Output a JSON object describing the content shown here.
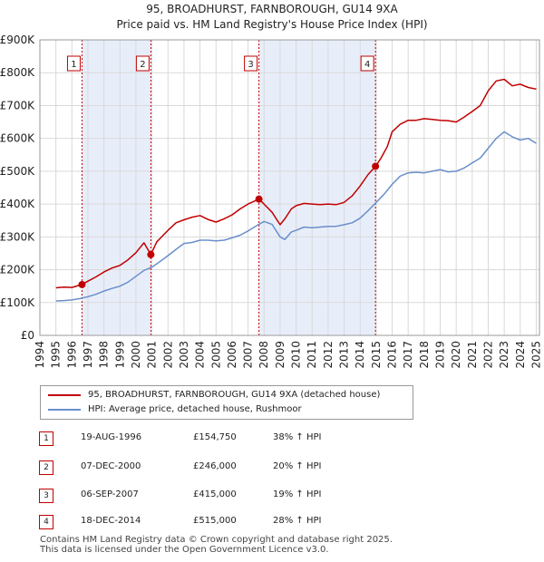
{
  "title_line1": "95, BROADHURST, FARNBOROUGH, GU14 9XA",
  "title_line2": "Price paid vs. HM Land Registry's House Price Index (HPI)",
  "chart_data": {
    "type": "line",
    "xlim": [
      1994.0,
      2025.2
    ],
    "ylim": [
      0,
      900000
    ],
    "y_ticks": [
      {
        "value": 0,
        "label": "£0"
      },
      {
        "value": 100000,
        "label": "£100K"
      },
      {
        "value": 200000,
        "label": "£200K"
      },
      {
        "value": 300000,
        "label": "£300K"
      },
      {
        "value": 400000,
        "label": "£400K"
      },
      {
        "value": 500000,
        "label": "£500K"
      },
      {
        "value": 600000,
        "label": "£600K"
      },
      {
        "value": 700000,
        "label": "£700K"
      },
      {
        "value": 800000,
        "label": "£800K"
      },
      {
        "value": 900000,
        "label": "£900K"
      }
    ],
    "x_ticks": [
      1994,
      1995,
      1996,
      1997,
      1998,
      1999,
      2000,
      2001,
      2002,
      2003,
      2004,
      2005,
      2006,
      2007,
      2008,
      2009,
      2010,
      2011,
      2012,
      2013,
      2014,
      2015,
      2016,
      2017,
      2018,
      2019,
      2020,
      2021,
      2022,
      2023,
      2024,
      2025
    ],
    "grid": true,
    "shaded_periods": [
      [
        1996.63,
        2000.93
      ],
      [
        2007.68,
        2014.96
      ]
    ],
    "series": [
      {
        "name": "95, BROADHURST, FARNBOROUGH, GU14 9XA (detached house)",
        "color": "#c00000",
        "x": [
          1995.0,
          1995.5,
          1996.0,
          1996.63,
          1997.0,
          1997.5,
          1998.0,
          1998.5,
          1999.0,
          1999.5,
          2000.0,
          2000.5,
          2000.93,
          2001.3,
          2001.7,
          2002.0,
          2002.5,
          2003.0,
          2003.5,
          2004.0,
          2004.5,
          2005.0,
          2005.5,
          2006.0,
          2006.5,
          2007.0,
          2007.68,
          2008.0,
          2008.5,
          2009.0,
          2009.3,
          2009.7,
          2010.0,
          2010.5,
          2011.0,
          2011.5,
          2012.0,
          2012.5,
          2013.0,
          2013.5,
          2014.0,
          2014.5,
          2014.96,
          2015.3,
          2015.7,
          2016.0,
          2016.5,
          2017.0,
          2017.5,
          2018.0,
          2018.5,
          2019.0,
          2019.5,
          2020.0,
          2020.5,
          2021.0,
          2021.5,
          2022.0,
          2022.5,
          2023.0,
          2023.5,
          2024.0,
          2024.5,
          2025.0
        ],
        "values": [
          145000,
          147000,
          146000,
          154750,
          165000,
          178000,
          193000,
          205000,
          213000,
          230000,
          252000,
          282000,
          246000,
          285000,
          305000,
          320000,
          343000,
          352000,
          360000,
          365000,
          353000,
          345000,
          355000,
          367000,
          385000,
          400000,
          415000,
          400000,
          375000,
          337000,
          355000,
          385000,
          395000,
          402000,
          400000,
          398000,
          400000,
          398000,
          405000,
          425000,
          455000,
          490000,
          515000,
          540000,
          575000,
          620000,
          643000,
          655000,
          655000,
          660000,
          658000,
          655000,
          654000,
          650000,
          665000,
          682000,
          700000,
          745000,
          775000,
          780000,
          760000,
          765000,
          755000,
          750000
        ]
      },
      {
        "name": "HPI: Average price, detached house, Rushmoor",
        "color": "#6a8fcb",
        "x": [
          1995.0,
          1995.5,
          1996.0,
          1996.5,
          1997.0,
          1997.5,
          1998.0,
          1998.5,
          1999.0,
          1999.5,
          2000.0,
          2000.5,
          2001.0,
          2001.5,
          2002.0,
          2002.5,
          2003.0,
          2003.5,
          2004.0,
          2004.5,
          2005.0,
          2005.5,
          2006.0,
          2006.5,
          2007.0,
          2007.5,
          2008.0,
          2008.5,
          2009.0,
          2009.3,
          2009.7,
          2010.0,
          2010.5,
          2011.0,
          2011.5,
          2012.0,
          2012.5,
          2013.0,
          2013.5,
          2014.0,
          2014.5,
          2015.0,
          2015.5,
          2016.0,
          2016.5,
          2017.0,
          2017.5,
          2018.0,
          2018.5,
          2019.0,
          2019.5,
          2020.0,
          2020.5,
          2021.0,
          2021.5,
          2022.0,
          2022.5,
          2023.0,
          2023.5,
          2024.0,
          2024.5,
          2025.0
        ],
        "values": [
          105000,
          106000,
          108000,
          112000,
          118000,
          125000,
          135000,
          143000,
          150000,
          162000,
          180000,
          198000,
          208000,
          225000,
          243000,
          262000,
          280000,
          283000,
          290000,
          290000,
          288000,
          290000,
          297000,
          305000,
          318000,
          333000,
          347000,
          338000,
          300000,
          292000,
          315000,
          320000,
          330000,
          328000,
          330000,
          332000,
          332000,
          337000,
          343000,
          357000,
          380000,
          405000,
          430000,
          460000,
          485000,
          495000,
          497000,
          495000,
          500000,
          505000,
          498000,
          500000,
          510000,
          525000,
          540000,
          570000,
          600000,
          620000,
          605000,
          595000,
          600000,
          585000
        ]
      }
    ],
    "sales": [
      {
        "label": "1",
        "x": 1996.63,
        "value": 154750
      },
      {
        "label": "2",
        "x": 2000.93,
        "value": 246000
      },
      {
        "label": "3",
        "x": 2007.68,
        "value": 415000
      },
      {
        "label": "4",
        "x": 2014.96,
        "value": 515000
      }
    ]
  },
  "legend": [
    {
      "label": "95, BROADHURST, FARNBOROUGH, GU14 9XA (detached house)",
      "color": "#c00000"
    },
    {
      "label": "HPI: Average price, detached house, Rushmoor",
      "color": "#6a8fcb"
    }
  ],
  "sales_table": [
    {
      "num": "1",
      "date": "19-AUG-1996",
      "price": "£154,750",
      "hpi": "38% ↑ HPI"
    },
    {
      "num": "2",
      "date": "07-DEC-2000",
      "price": "£246,000",
      "hpi": "20% ↑ HPI"
    },
    {
      "num": "3",
      "date": "06-SEP-2007",
      "price": "£415,000",
      "hpi": "19% ↑ HPI"
    },
    {
      "num": "4",
      "date": "18-DEC-2014",
      "price": "£515,000",
      "hpi": "28% ↑ HPI"
    }
  ],
  "footer_line1": "Contains HM Land Registry data © Crown copyright and database right 2025.",
  "footer_line2": "This data is licensed under the Open Government Licence v3.0."
}
